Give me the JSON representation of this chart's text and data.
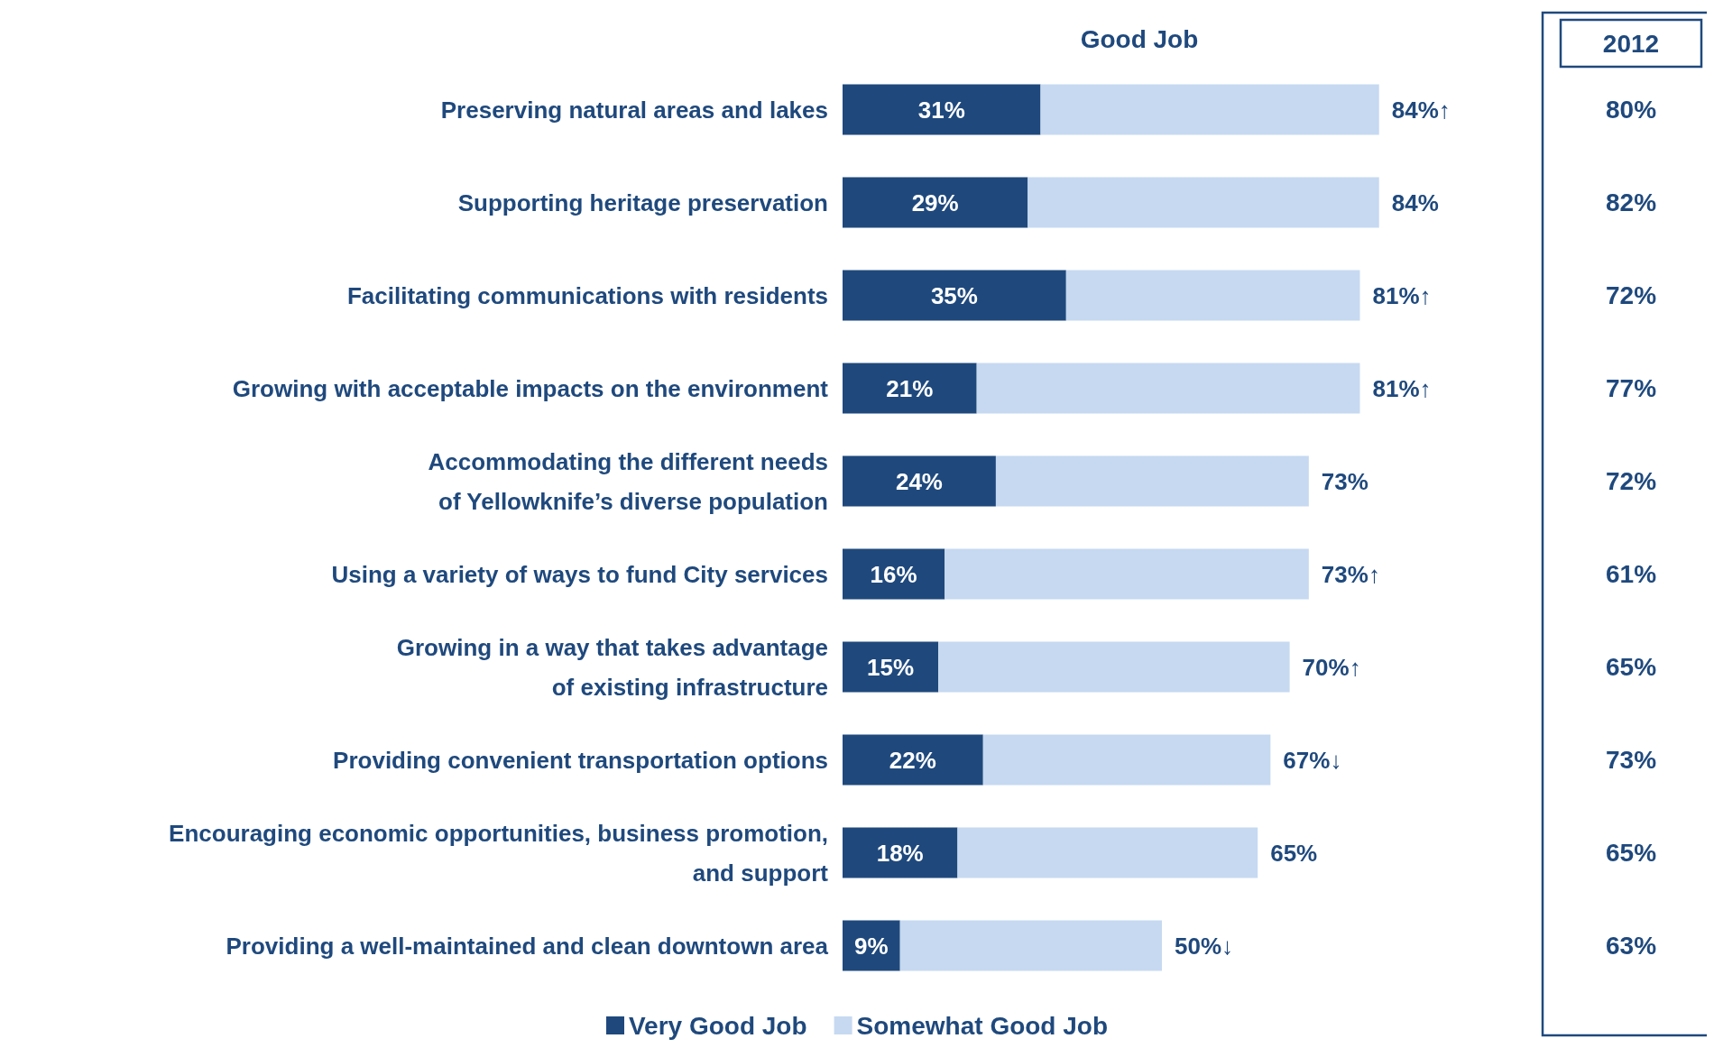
{
  "chart_data": {
    "type": "bar",
    "orientation": "horizontal",
    "stacked": true,
    "title": "Good Job",
    "legend": "bottom",
    "categories": [
      "Preserving natural areas and lakes",
      "Supporting heritage preservation",
      "Facilitating communications with residents",
      "Growing with acceptable impacts on the environment",
      "Accommodating the different needs\nof Yellowknife’s diverse population",
      "Using a variety of ways to fund City services",
      "Growing in a way that takes advantage\nof existing infrastructure",
      "Providing convenient transportation options",
      "Encouraging economic opportunities, business promotion,\nand support",
      "Providing a well-maintained and clean downtown area"
    ],
    "series": [
      {
        "name": "Very Good Job",
        "color": "#1f497d",
        "values": [
          31,
          29,
          35,
          21,
          24,
          16,
          15,
          22,
          18,
          9
        ],
        "value_labels": [
          "31%",
          "29%",
          "35%",
          "21%",
          "24%",
          "16%",
          "15%",
          "22%",
          "18%",
          "9%"
        ]
      },
      {
        "name": "Somewhat Good Job",
        "color": "#c6d9f1",
        "values": [
          53,
          55,
          46,
          60,
          49,
          57,
          55,
          45,
          47,
          41
        ]
      }
    ],
    "totals": [
      "84%↑",
      "84%",
      "81%↑",
      "81%↑",
      "73%",
      "73%↑",
      "70%↑",
      "67%↓",
      "65%",
      "50%↓"
    ],
    "annotations": [
      "2012",
      "80%",
      "82%",
      "72%",
      "77%",
      "72%",
      "61%",
      "65%",
      "73%",
      "65%",
      "63%"
    ]
  }
}
